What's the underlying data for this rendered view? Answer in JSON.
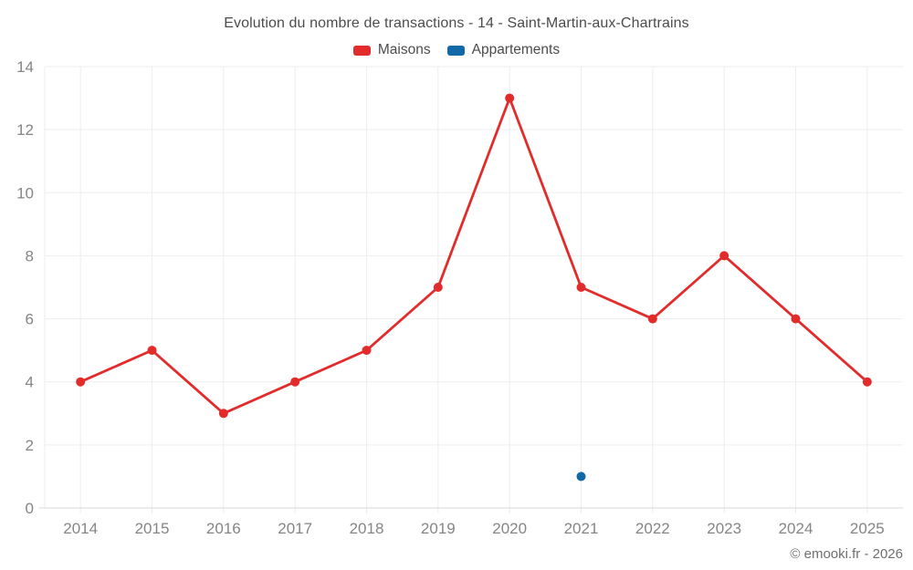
{
  "footer": "© emooki.fr - 2026",
  "chart_data": {
    "type": "line",
    "title": "Evolution du nombre de transactions - 14 - Saint-Martin-aux-Chartrains",
    "categories": [
      "2014",
      "2015",
      "2016",
      "2017",
      "2018",
      "2019",
      "2020",
      "2021",
      "2022",
      "2023",
      "2024",
      "2025"
    ],
    "series": [
      {
        "name": "Maisons",
        "color": "#e22b2b",
        "values": [
          4,
          5,
          3,
          4,
          5,
          7,
          13,
          7,
          6,
          8,
          6,
          4
        ]
      },
      {
        "name": "Appartements",
        "color": "#1269a8",
        "values": [
          null,
          null,
          null,
          null,
          null,
          null,
          null,
          1,
          null,
          null,
          null,
          null
        ]
      }
    ],
    "xlabel": "",
    "ylabel": "",
    "ylim": [
      0,
      14
    ],
    "ytick_step": 2,
    "grid": true,
    "legend_position": "top",
    "colors": {
      "grid_line": "#ededed",
      "axis_line": "#d9d9d9",
      "tick_label": "#858585",
      "title_text": "#4c4c4c"
    }
  }
}
